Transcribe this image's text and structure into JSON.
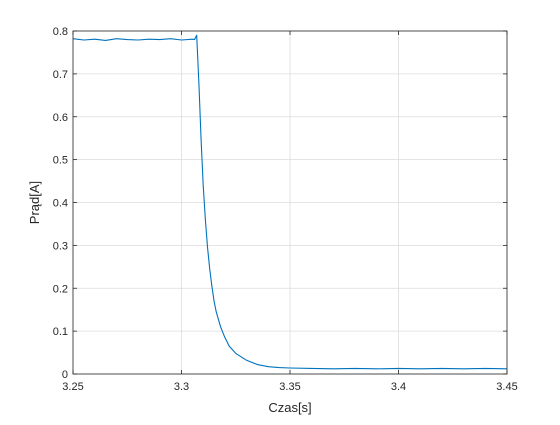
{
  "chart_data": {
    "type": "line",
    "title": "",
    "xlabel": "Czas[s]",
    "ylabel": "Prąd[A]",
    "xlim": [
      3.25,
      3.45
    ],
    "ylim": [
      0,
      0.8
    ],
    "xticks": [
      3.25,
      3.3,
      3.35,
      3.4,
      3.45
    ],
    "xtick_labels": [
      "3.25",
      "3.3",
      "3.35",
      "3.4",
      "3.45"
    ],
    "yticks": [
      0,
      0.1,
      0.2,
      0.3,
      0.4,
      0.5,
      0.6,
      0.7,
      0.8
    ],
    "ytick_labels": [
      "0",
      "0.1",
      "0.2",
      "0.3",
      "0.4",
      "0.5",
      "0.6",
      "0.7",
      "0.8"
    ],
    "grid": true,
    "legend": false,
    "series": [
      {
        "color": "#0072bd",
        "x": [
          3.25,
          3.255,
          3.26,
          3.265,
          3.27,
          3.275,
          3.28,
          3.285,
          3.29,
          3.295,
          3.3,
          3.305,
          3.306,
          3.307,
          3.308,
          3.309,
          3.31,
          3.311,
          3.312,
          3.313,
          3.314,
          3.315,
          3.316,
          3.318,
          3.32,
          3.322,
          3.325,
          3.33,
          3.335,
          3.34,
          3.345,
          3.35,
          3.36,
          3.37,
          3.38,
          3.39,
          3.4,
          3.41,
          3.42,
          3.43,
          3.44,
          3.45
        ],
        "y": [
          0.782,
          0.779,
          0.781,
          0.778,
          0.782,
          0.78,
          0.779,
          0.781,
          0.78,
          0.782,
          0.779,
          0.781,
          0.78,
          0.79,
          0.68,
          0.55,
          0.44,
          0.36,
          0.295,
          0.245,
          0.205,
          0.17,
          0.145,
          0.11,
          0.085,
          0.065,
          0.048,
          0.032,
          0.022,
          0.017,
          0.015,
          0.014,
          0.013,
          0.012,
          0.013,
          0.012,
          0.013,
          0.012,
          0.013,
          0.012,
          0.013,
          0.012
        ]
      }
    ]
  }
}
